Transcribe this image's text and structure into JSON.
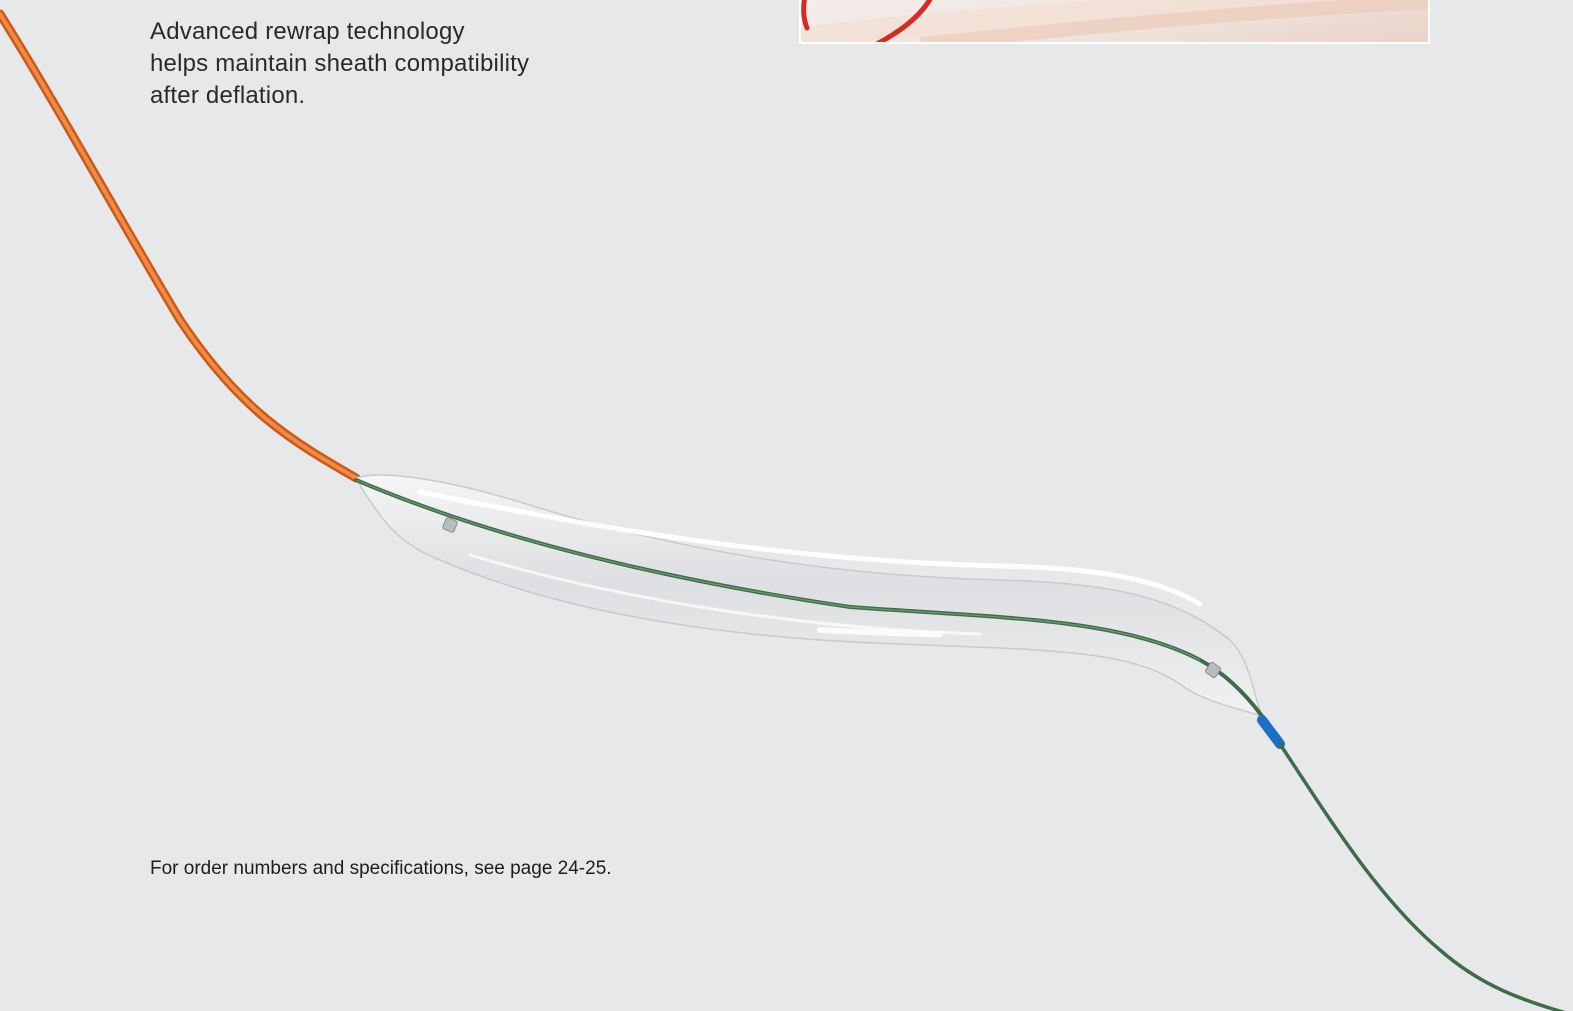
{
  "description": {
    "lines": [
      "Advanced rewrap technology",
      "helps maintain sheath compatibility",
      "after deflation."
    ]
  },
  "footnote": "For order numbers and specifications, see page 24-25.",
  "colors": {
    "background": "#e7e8ea",
    "shaft": "#e8782f",
    "guidewire": "#3f6b47",
    "tip": "#1c6fc4",
    "inset_catheter": "#d42a22"
  },
  "images": {
    "product_photo": "balloon-catheter-image",
    "inset_photo": "catheter-detail-inset"
  }
}
